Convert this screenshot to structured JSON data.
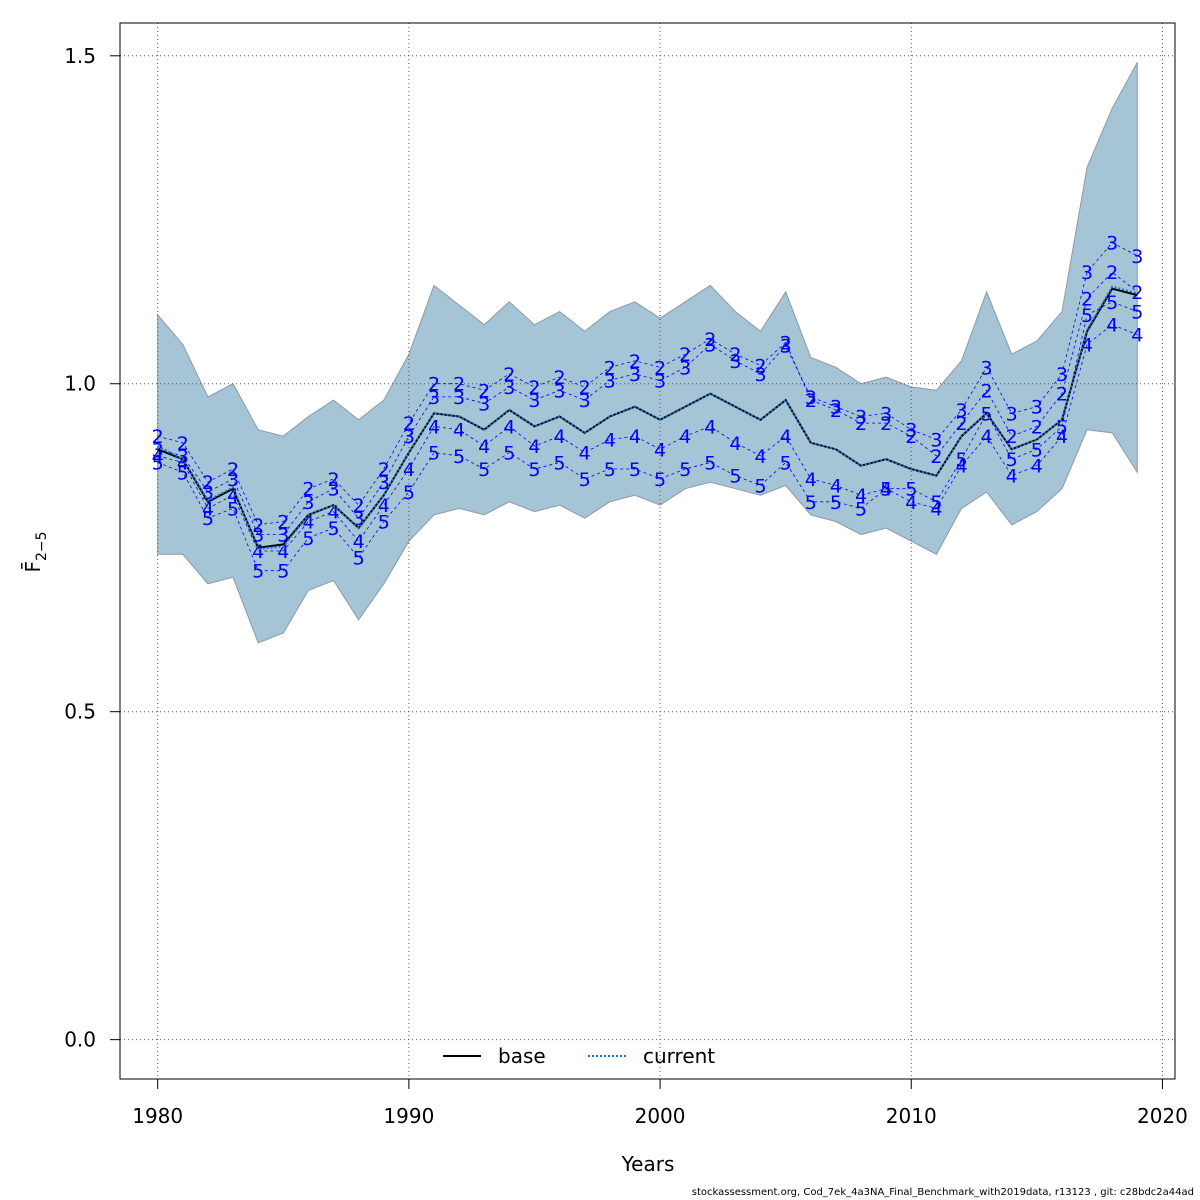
{
  "chart_data": {
    "type": "line",
    "xlabel": "Years",
    "ylabel": "F̄",
    "ylabel_sub": "2−5",
    "xlim": [
      1978.5,
      2020.5
    ],
    "ylim": [
      -0.06,
      1.55
    ],
    "xticks": [
      1980,
      1990,
      2000,
      2010,
      2020
    ],
    "yticks": [
      0.0,
      0.5,
      1.0,
      1.5
    ],
    "ytick_labels": [
      "0.0",
      "0.5",
      "1.0",
      "1.5"
    ],
    "grid": true,
    "legend_position": "bottom-center",
    "x": [
      1980,
      1981,
      1982,
      1983,
      1984,
      1985,
      1986,
      1987,
      1988,
      1989,
      1990,
      1991,
      1992,
      1993,
      1994,
      1995,
      1996,
      1997,
      1998,
      1999,
      2000,
      2001,
      2002,
      2003,
      2004,
      2005,
      2006,
      2007,
      2008,
      2009,
      2010,
      2011,
      2012,
      2013,
      2014,
      2015,
      2016,
      2017,
      2018,
      2019
    ],
    "band": {
      "upper": [
        1.105,
        1.06,
        0.98,
        1.0,
        0.93,
        0.92,
        0.95,
        0.975,
        0.945,
        0.975,
        1.045,
        1.15,
        1.12,
        1.09,
        1.125,
        1.09,
        1.11,
        1.08,
        1.11,
        1.125,
        1.1,
        1.125,
        1.15,
        1.11,
        1.08,
        1.14,
        1.04,
        1.025,
        1.0,
        1.01,
        0.995,
        0.99,
        1.035,
        1.14,
        1.045,
        1.065,
        1.11,
        1.33,
        1.42,
        1.49
      ],
      "lower": [
        0.74,
        0.74,
        0.695,
        0.705,
        0.605,
        0.62,
        0.685,
        0.7,
        0.64,
        0.695,
        0.76,
        0.8,
        0.81,
        0.8,
        0.82,
        0.805,
        0.815,
        0.795,
        0.82,
        0.83,
        0.815,
        0.84,
        0.85,
        0.84,
        0.83,
        0.845,
        0.8,
        0.79,
        0.77,
        0.78,
        0.76,
        0.74,
        0.81,
        0.835,
        0.785,
        0.805,
        0.84,
        0.93,
        0.925,
        0.865
      ]
    },
    "series": [
      {
        "name": "base",
        "style": "solid",
        "color": "#000000",
        "values": [
          0.9,
          0.885,
          0.82,
          0.84,
          0.75,
          0.755,
          0.8,
          0.815,
          0.78,
          0.83,
          0.895,
          0.955,
          0.95,
          0.93,
          0.96,
          0.935,
          0.95,
          0.925,
          0.95,
          0.965,
          0.945,
          0.965,
          0.985,
          0.965,
          0.945,
          0.975,
          0.91,
          0.9,
          0.875,
          0.885,
          0.87,
          0.86,
          0.92,
          0.955,
          0.9,
          0.915,
          0.945,
          1.08,
          1.145,
          1.135
        ]
      },
      {
        "name": "current",
        "style": "dotted",
        "color": "#1874cd",
        "values": [
          0.905,
          0.885,
          0.822,
          0.842,
          0.748,
          0.752,
          0.8,
          0.815,
          0.78,
          0.83,
          0.895,
          0.955,
          0.95,
          0.93,
          0.96,
          0.935,
          0.95,
          0.925,
          0.95,
          0.965,
          0.945,
          0.965,
          0.985,
          0.965,
          0.945,
          0.975,
          0.91,
          0.9,
          0.875,
          0.885,
          0.87,
          0.86,
          0.92,
          0.955,
          0.9,
          0.915,
          0.945,
          1.082,
          1.148,
          1.138
        ]
      }
    ],
    "age_curves": [
      {
        "label": "2",
        "values": [
          0.92,
          0.91,
          0.85,
          0.87,
          0.785,
          0.79,
          0.84,
          0.855,
          0.815,
          0.87,
          0.94,
          1.0,
          1.0,
          0.99,
          1.015,
          0.995,
          1.01,
          0.995,
          1.025,
          1.035,
          1.025,
          1.045,
          1.068,
          1.045,
          1.028,
          1.063,
          0.975,
          0.96,
          0.94,
          0.94,
          0.92,
          0.89,
          0.94,
          0.99,
          0.92,
          0.935,
          0.985,
          1.13,
          1.17,
          1.14
        ]
      },
      {
        "label": "3",
        "values": [
          0.9,
          0.89,
          0.835,
          0.855,
          0.77,
          0.77,
          0.82,
          0.84,
          0.795,
          0.85,
          0.92,
          0.98,
          0.98,
          0.97,
          0.995,
          0.975,
          0.99,
          0.975,
          1.005,
          1.015,
          1.005,
          1.025,
          1.06,
          1.035,
          1.015,
          1.058,
          0.98,
          0.965,
          0.95,
          0.955,
          0.93,
          0.915,
          0.96,
          1.025,
          0.955,
          0.965,
          1.015,
          1.17,
          1.215,
          1.195
        ]
      },
      {
        "label": "4",
        "values": [
          0.89,
          0.88,
          0.81,
          0.83,
          0.745,
          0.745,
          0.79,
          0.805,
          0.76,
          0.815,
          0.87,
          0.935,
          0.93,
          0.905,
          0.935,
          0.905,
          0.92,
          0.895,
          0.915,
          0.92,
          0.9,
          0.92,
          0.935,
          0.91,
          0.89,
          0.92,
          0.855,
          0.845,
          0.83,
          0.84,
          0.82,
          0.81,
          0.875,
          0.92,
          0.86,
          0.875,
          0.92,
          1.06,
          1.09,
          1.075
        ]
      },
      {
        "label": "5",
        "values": [
          0.88,
          0.865,
          0.795,
          0.81,
          0.715,
          0.715,
          0.765,
          0.78,
          0.735,
          0.79,
          0.835,
          0.895,
          0.89,
          0.87,
          0.895,
          0.87,
          0.88,
          0.855,
          0.87,
          0.87,
          0.855,
          0.87,
          0.88,
          0.86,
          0.845,
          0.88,
          0.82,
          0.82,
          0.81,
          0.84,
          0.84,
          0.82,
          0.885,
          0.955,
          0.885,
          0.9,
          0.935,
          1.105,
          1.125,
          1.11
        ]
      }
    ],
    "colors": {
      "band": "#a5c4d6",
      "band_edge": "#8c9aa5",
      "age": "#0000ff",
      "base": "#000000",
      "current": "#1874cd",
      "grid": "#555555"
    }
  },
  "legend": {
    "base": "base",
    "current": "current"
  },
  "footer": "stockassessment.org, Cod_7ek_4a3NA_Final_Benchmark_with2019data, r13123 , git: c28bdc2a44ad"
}
